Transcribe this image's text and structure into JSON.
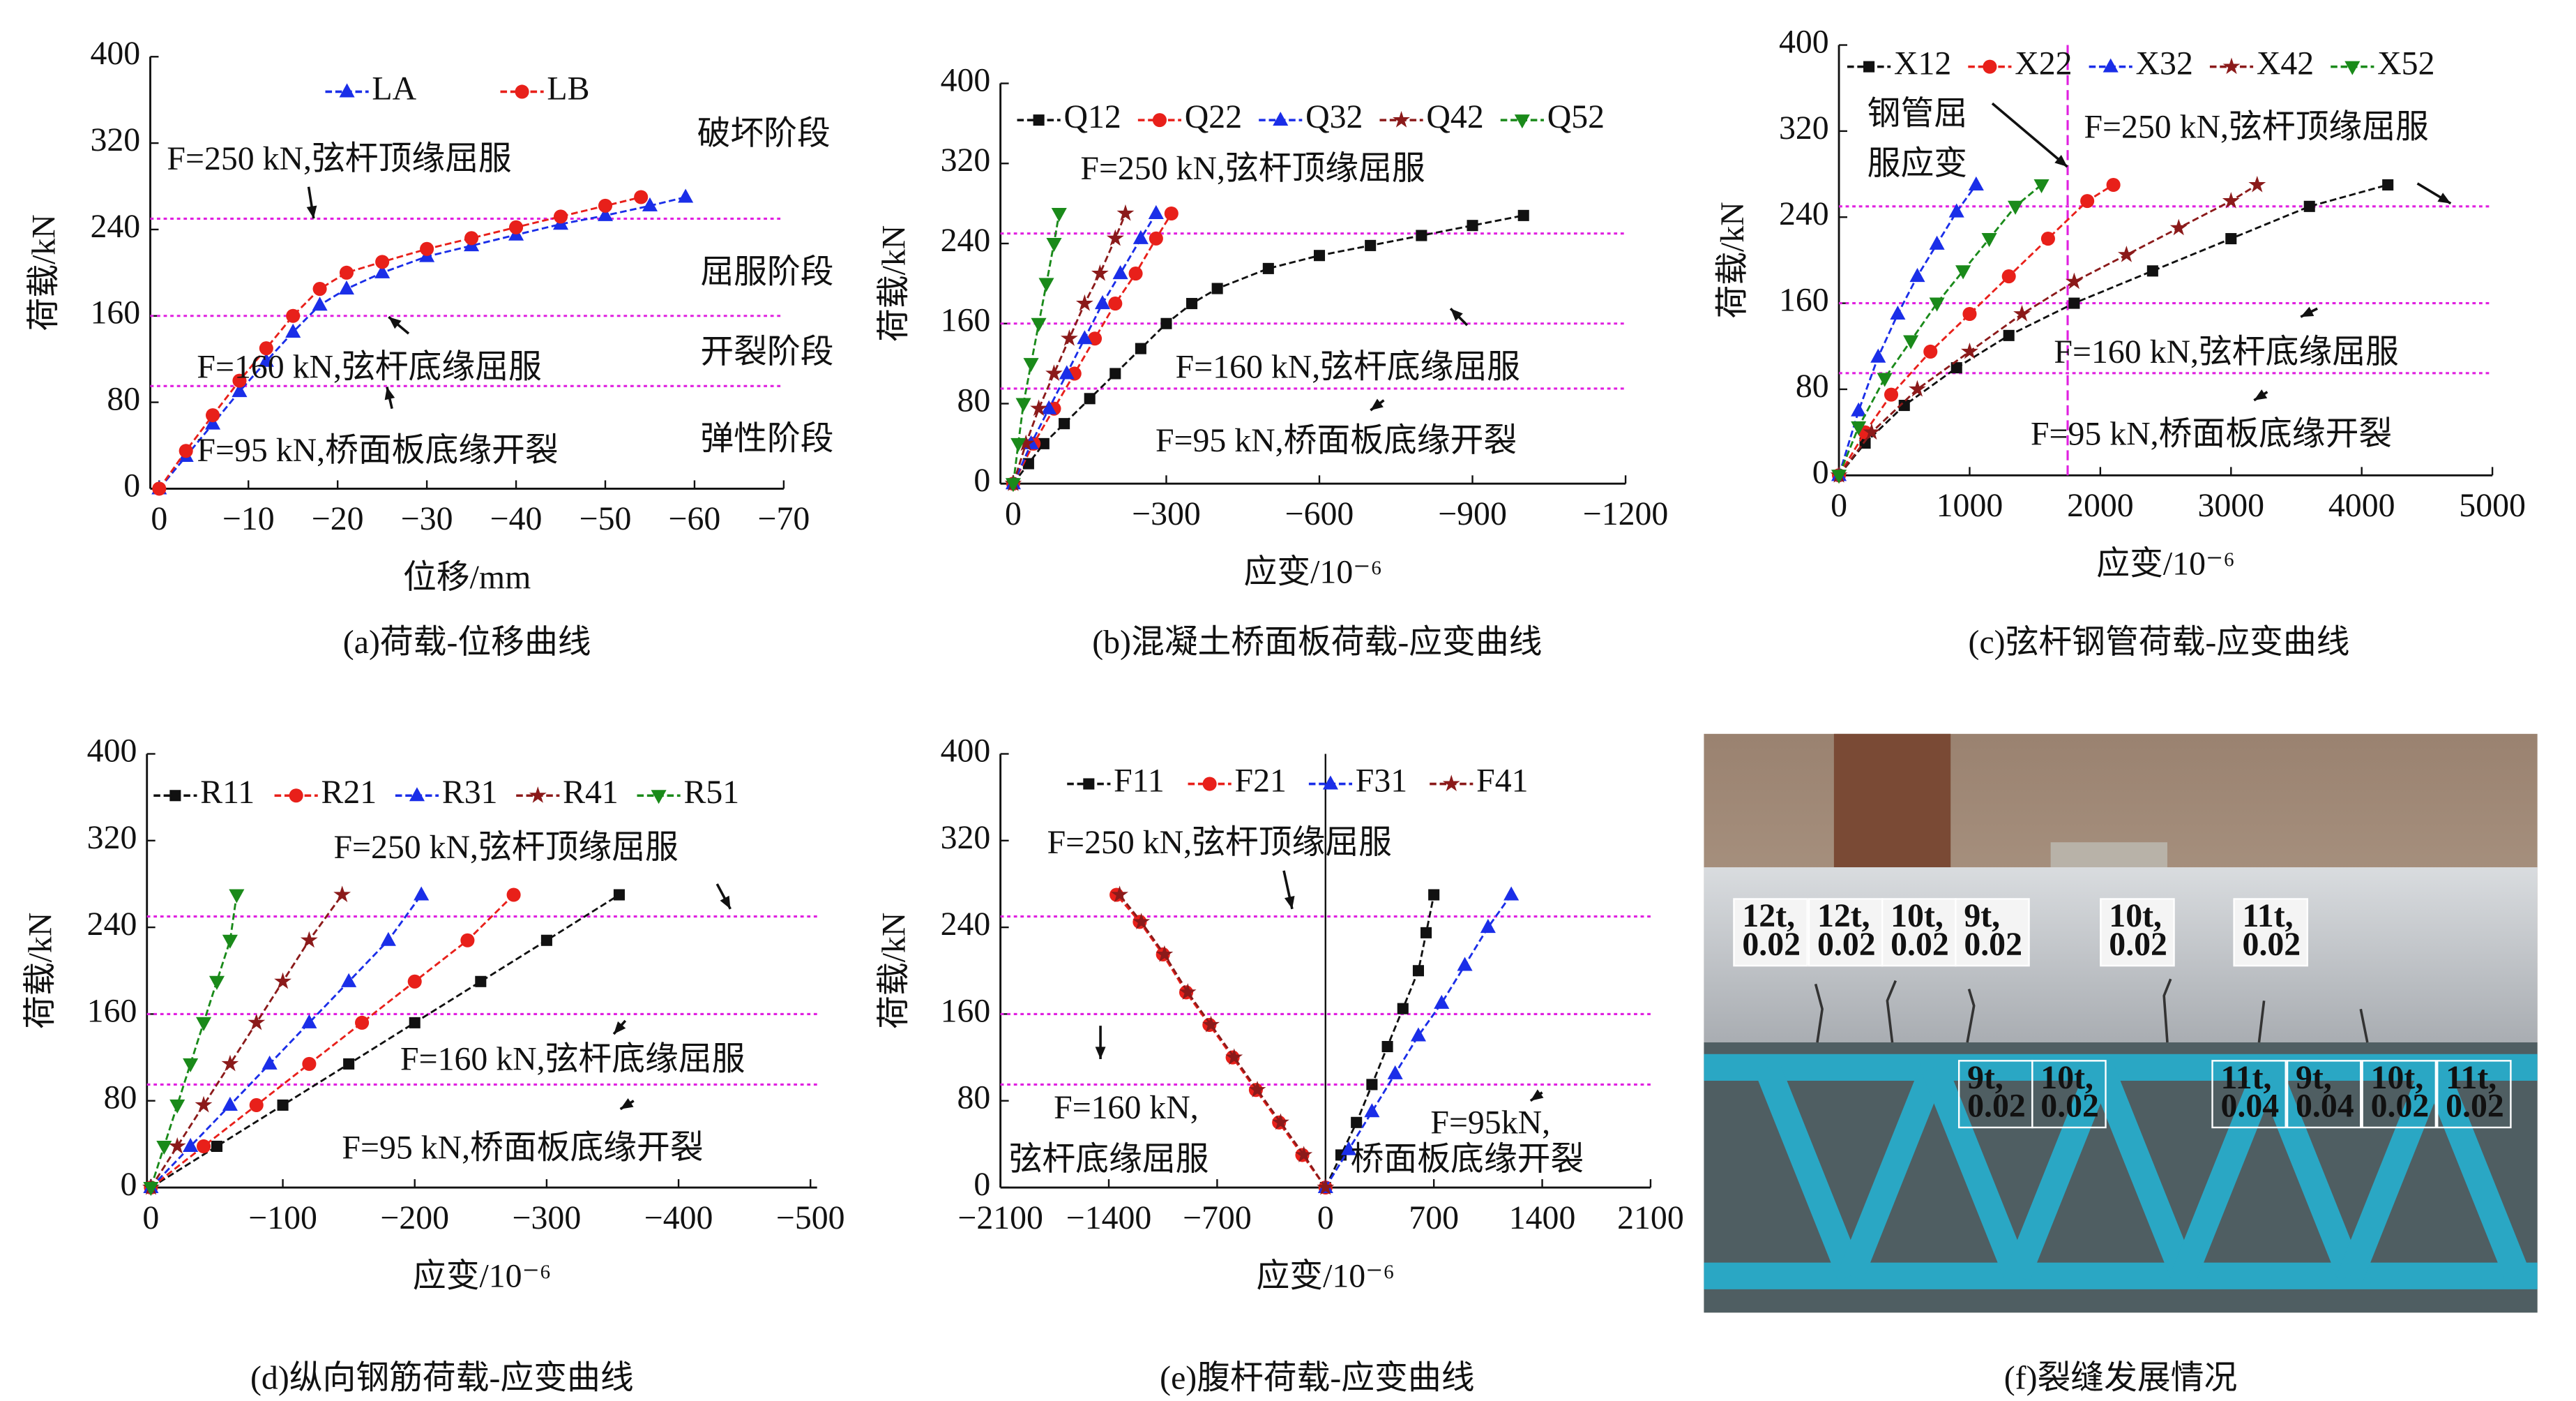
{
  "chart_data": [
    {
      "type": "line",
      "caption": "(a)荷载-位移曲线",
      "xlabel": "位移/mm",
      "ylabel": "荷载/kN",
      "xlim": [
        1,
        -70
      ],
      "xticks": [
        0,
        {
          "value": -10,
          "label": "−10"
        },
        {
          "value": -20,
          "label": "−20"
        },
        {
          "value": -30,
          "label": "−30"
        },
        {
          "value": -40,
          "label": "−40"
        },
        {
          "value": -50,
          "label": "−50"
        },
        {
          "value": -60,
          "label": "−60"
        },
        {
          "value": -70,
          "label": "−70"
        }
      ],
      "ylim": [
        0,
        400
      ],
      "yticks": [
        0,
        80,
        160,
        240,
        320,
        400
      ],
      "hlines": [
        250,
        160,
        95
      ],
      "hline_color": "#e020e0",
      "annotations": [
        "F=250 kN,弦杆顶缘屈服",
        "F=160 kN,弦杆底缘屈服",
        "F=95 kN,桥面板底缘开裂",
        "破坏阶段",
        "屈服阶段",
        "开裂阶段",
        "弹性阶段"
      ],
      "series": [
        {
          "name": "LA",
          "color": "#1a2ee8",
          "marker": "triangle",
          "x": [
            0,
            -3,
            -6,
            -9,
            -12,
            -15,
            -18,
            -21,
            -25,
            -30,
            -35,
            -40,
            -45,
            -50,
            -55,
            -59
          ],
          "values": [
            0,
            30,
            60,
            90,
            118,
            145,
            170,
            185,
            200,
            215,
            225,
            235,
            245,
            253,
            262,
            270
          ]
        },
        {
          "name": "LB",
          "color": "#e8201a",
          "marker": "circle",
          "x": [
            0,
            -3,
            -6,
            -9,
            -12,
            -15,
            -18,
            -21,
            -25,
            -30,
            -35,
            -40,
            -45,
            -50,
            -54
          ],
          "values": [
            0,
            35,
            68,
            100,
            130,
            160,
            185,
            200,
            210,
            222,
            232,
            242,
            252,
            262,
            270
          ]
        }
      ]
    },
    {
      "type": "line",
      "caption": "(b)混凝土桥面板荷载-应变曲线",
      "xlabel": "应变/10⁻⁶",
      "ylabel": "荷载/kN",
      "xlim": [
        25,
        -1200
      ],
      "xticks": [
        0,
        {
          "value": -300,
          "label": "−300"
        },
        {
          "value": -600,
          "label": "−600"
        },
        {
          "value": -900,
          "label": "−900"
        },
        {
          "value": -1200,
          "label": "−1200"
        }
      ],
      "ylim": [
        0,
        400
      ],
      "yticks": [
        0,
        80,
        160,
        240,
        320,
        400
      ],
      "hlines": [
        250,
        160,
        95
      ],
      "hline_color": "#e020e0",
      "annotations": [
        "F=250 kN,弦杆顶缘屈服",
        "F=160 kN,弦杆底缘屈服",
        "F=95 kN,桥面板底缘开裂"
      ],
      "series": [
        {
          "name": "Q12",
          "color": "#111111",
          "marker": "square",
          "x": [
            0,
            -30,
            -60,
            -100,
            -150,
            -200,
            -250,
            -300,
            -350,
            -400,
            -500,
            -600,
            -700,
            -800,
            -900,
            -1000
          ],
          "values": [
            0,
            20,
            40,
            60,
            85,
            110,
            135,
            160,
            180,
            195,
            215,
            228,
            238,
            248,
            258,
            268
          ]
        },
        {
          "name": "Q22",
          "color": "#e8201a",
          "marker": "circle",
          "x": [
            0,
            -40,
            -80,
            -120,
            -160,
            -200,
            -240,
            -280,
            -310
          ],
          "values": [
            0,
            40,
            75,
            110,
            145,
            180,
            210,
            245,
            270
          ]
        },
        {
          "name": "Q32",
          "color": "#1a2ee8",
          "marker": "triangle",
          "x": [
            0,
            -35,
            -70,
            -105,
            -140,
            -175,
            -210,
            -250,
            -280
          ],
          "values": [
            0,
            40,
            75,
            110,
            145,
            180,
            210,
            245,
            270
          ]
        },
        {
          "name": "Q42",
          "color": "#8b1a1a",
          "marker": "star",
          "x": [
            0,
            -25,
            -50,
            -80,
            -110,
            -140,
            -170,
            -200,
            -220
          ],
          "values": [
            0,
            40,
            75,
            110,
            145,
            180,
            210,
            245,
            270
          ]
        },
        {
          "name": "Q52",
          "color": "#1a8a1a",
          "marker": "triangle-down",
          "x": [
            0,
            -10,
            -20,
            -35,
            -50,
            -65,
            -80,
            -90
          ],
          "values": [
            0,
            40,
            80,
            120,
            160,
            200,
            240,
            270
          ]
        }
      ]
    },
    {
      "type": "line",
      "caption": "(c)弦杆钢管荷载-应变曲线",
      "xlabel": "应变/10⁻⁶",
      "ylabel": "荷载/kN",
      "xlim": [
        0,
        5000
      ],
      "xticks": [
        0,
        1000,
        2000,
        3000,
        4000,
        5000
      ],
      "ylim": [
        0,
        400
      ],
      "yticks": [
        0,
        80,
        160,
        240,
        320,
        400
      ],
      "hlines": [
        250,
        160,
        95
      ],
      "vlines": [
        1750
      ],
      "hline_color": "#e020e0",
      "annotations": [
        "钢管屈",
        "服应变",
        "F=250 kN,弦杆顶缘屈服",
        "F=160 kN,弦杆底缘屈服",
        "F=95 kN,桥面板底缘开裂"
      ],
      "series": [
        {
          "name": "X12",
          "color": "#111111",
          "marker": "square",
          "x": [
            0,
            200,
            500,
            900,
            1300,
            1800,
            2400,
            3000,
            3600,
            4200
          ],
          "values": [
            0,
            30,
            65,
            100,
            130,
            160,
            190,
            220,
            250,
            270
          ]
        },
        {
          "name": "X22",
          "color": "#e8201a",
          "marker": "circle",
          "x": [
            0,
            200,
            400,
            700,
            1000,
            1300,
            1600,
            1900,
            2100
          ],
          "values": [
            0,
            40,
            75,
            115,
            150,
            185,
            220,
            255,
            270
          ]
        },
        {
          "name": "X32",
          "color": "#1a2ee8",
          "marker": "triangle",
          "x": [
            0,
            150,
            300,
            450,
            600,
            750,
            900,
            1050
          ],
          "values": [
            0,
            60,
            110,
            150,
            185,
            215,
            245,
            270
          ]
        },
        {
          "name": "X42",
          "color": "#8b1a1a",
          "marker": "star",
          "x": [
            0,
            250,
            600,
            1000,
            1400,
            1800,
            2200,
            2600,
            3000,
            3200
          ],
          "values": [
            0,
            40,
            80,
            115,
            150,
            180,
            205,
            230,
            255,
            270
          ]
        },
        {
          "name": "X52",
          "color": "#1a8a1a",
          "marker": "triangle-down",
          "x": [
            0,
            150,
            350,
            550,
            750,
            950,
            1150,
            1350,
            1550
          ],
          "values": [
            0,
            45,
            90,
            125,
            160,
            190,
            220,
            250,
            270
          ]
        }
      ]
    },
    {
      "type": "line",
      "caption": "(d)纵向钢筋荷载-应变曲线",
      "xlabel": "应变/10⁻⁶",
      "ylabel": "荷载/kN",
      "xlim": [
        3,
        -505
      ],
      "xticks": [
        0,
        {
          "value": -100,
          "label": "−100"
        },
        {
          "value": -200,
          "label": "−200"
        },
        {
          "value": -300,
          "label": "−300"
        },
        {
          "value": -400,
          "label": "−400"
        },
        {
          "value": -500,
          "label": "−500"
        }
      ],
      "ylim": [
        0,
        400
      ],
      "yticks": [
        0,
        80,
        160,
        240,
        320,
        400
      ],
      "hlines": [
        250,
        160,
        95
      ],
      "hline_color": "#e020e0",
      "annotations": [
        "F=250 kN,弦杆顶缘屈服",
        "F=160 kN,弦杆底缘屈服",
        "F=95 kN,桥面板底缘开裂"
      ],
      "series": [
        {
          "name": "R11",
          "color": "#111111",
          "marker": "square",
          "x": [
            0,
            -50,
            -100,
            -150,
            -200,
            -250,
            -300,
            -355
          ],
          "values": [
            0,
            38,
            76,
            114,
            152,
            190,
            228,
            270
          ]
        },
        {
          "name": "R21",
          "color": "#e8201a",
          "marker": "circle",
          "x": [
            0,
            -40,
            -80,
            -120,
            -160,
            -200,
            -240,
            -275
          ],
          "values": [
            0,
            38,
            76,
            114,
            152,
            190,
            228,
            270
          ]
        },
        {
          "name": "R31",
          "color": "#1a2ee8",
          "marker": "triangle",
          "x": [
            0,
            -30,
            -60,
            -90,
            -120,
            -150,
            -180,
            -205
          ],
          "values": [
            0,
            38,
            76,
            114,
            152,
            190,
            228,
            270
          ]
        },
        {
          "name": "R41",
          "color": "#8b1a1a",
          "marker": "star",
          "x": [
            0,
            -20,
            -40,
            -60,
            -80,
            -100,
            -120,
            -145
          ],
          "values": [
            0,
            38,
            76,
            114,
            152,
            190,
            228,
            270
          ]
        },
        {
          "name": "R51",
          "color": "#1a8a1a",
          "marker": "triangle-down",
          "x": [
            0,
            -10,
            -20,
            -30,
            -40,
            -50,
            -60,
            -65
          ],
          "values": [
            0,
            38,
            76,
            114,
            152,
            190,
            228,
            270
          ]
        }
      ]
    },
    {
      "type": "line",
      "caption": "(e)腹杆荷载-应变曲线",
      "xlabel": "应变/10⁻⁶",
      "ylabel": "荷载/kN",
      "xlim": [
        -2100,
        2100
      ],
      "xticks": [
        {
          "value": -2100,
          "label": "−2100"
        },
        {
          "value": -1400,
          "label": "−1400"
        },
        {
          "value": -700,
          "label": "−700"
        },
        0,
        700,
        1400,
        2100
      ],
      "ylim": [
        0,
        400
      ],
      "yticks": [
        0,
        80,
        160,
        240,
        320,
        400
      ],
      "hlines": [
        250,
        160,
        95
      ],
      "hline_color": "#e020e0",
      "annotations": [
        "F=250 kN,弦杆顶缘屈服",
        "F=160 kN,",
        "弦杆底缘屈服",
        "F=95kN,",
        "桥面板底缘开裂"
      ],
      "series": [
        {
          "name": "F11",
          "color": "#111111",
          "marker": "square",
          "x": [
            0,
            100,
            200,
            300,
            400,
            500,
            600,
            650,
            700
          ],
          "values": [
            0,
            30,
            60,
            95,
            130,
            165,
            200,
            235,
            270
          ]
        },
        {
          "name": "F21",
          "color": "#e8201a",
          "marker": "circle",
          "x": [
            0,
            -150,
            -300,
            -450,
            -600,
            -750,
            -900,
            -1050,
            -1200,
            -1350
          ],
          "values": [
            0,
            30,
            60,
            90,
            120,
            150,
            180,
            215,
            245,
            270
          ]
        },
        {
          "name": "F31",
          "color": "#1a2ee8",
          "marker": "triangle",
          "x": [
            0,
            150,
            300,
            450,
            600,
            750,
            900,
            1050,
            1200
          ],
          "values": [
            0,
            35,
            70,
            105,
            140,
            170,
            205,
            240,
            270
          ]
        },
        {
          "name": "F41",
          "color": "#8b1a1a",
          "marker": "star",
          "x": [
            0,
            -140,
            -290,
            -440,
            -590,
            -740,
            -890,
            -1040,
            -1190,
            -1330
          ],
          "values": [
            0,
            30,
            60,
            90,
            120,
            150,
            180,
            215,
            245,
            270
          ]
        }
      ]
    }
  ],
  "photo": {
    "caption": "(f)裂缝发展情况",
    "labels_top": [
      [
        "12t,",
        "0.02"
      ],
      [
        "12t,",
        "0.02"
      ],
      [
        "10t,",
        "0.02"
      ],
      [
        "9t,",
        "0.02"
      ],
      [
        "10t,",
        "0.02"
      ],
      [
        "11t,",
        "0.02"
      ]
    ],
    "labels_bottom": [
      [
        "9t,",
        "0.02"
      ],
      [
        "10t,",
        "0.02"
      ],
      [
        "11t,",
        "0.04"
      ],
      [
        "9t,",
        "0.04"
      ],
      [
        "10t,",
        "0.02"
      ],
      [
        "11t,",
        "0.02"
      ]
    ]
  }
}
